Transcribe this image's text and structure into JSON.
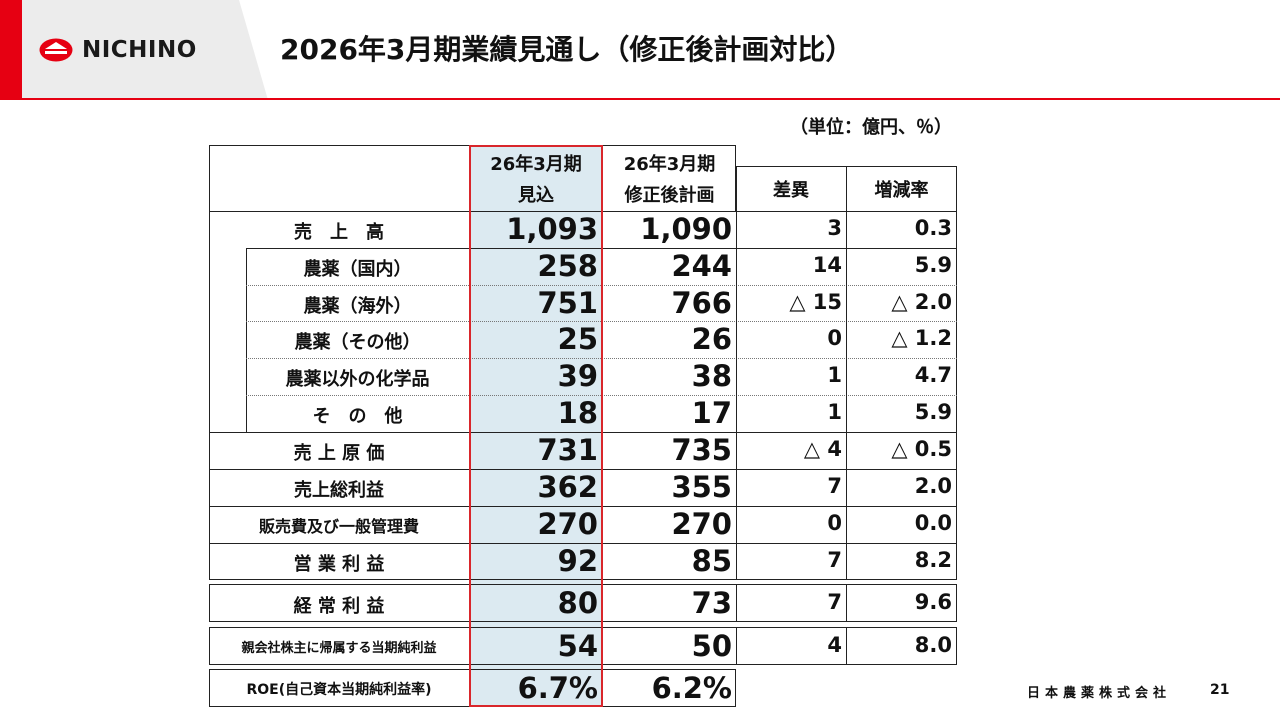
{
  "brand": {
    "logo_text": "NICHINO",
    "accent": "#e60012"
  },
  "title": "2026年3月期業績見通し（修正後計画対比）",
  "unit": "（単位：億円、％）",
  "columns": {
    "forecast_line1": "26年3月期",
    "forecast_line2": "見込",
    "plan_line1": "26年3月期",
    "plan_line2": "修正後計画",
    "diff": "差異",
    "rate": "増減率"
  },
  "rows": [
    {
      "label": "売　上　高",
      "forecast": "1,093",
      "plan": "1,090",
      "diff": "3",
      "rate": "0.3"
    },
    {
      "label": "農薬（国内）",
      "forecast": "258",
      "plan": "244",
      "diff": "14",
      "rate": "5.9"
    },
    {
      "label": "農薬（海外）",
      "forecast": "751",
      "plan": "766",
      "diff": "△ 15",
      "rate": "△ 2.0"
    },
    {
      "label": "農薬（その他）",
      "forecast": "25",
      "plan": "26",
      "diff": "0",
      "rate": "△ 1.2"
    },
    {
      "label": "農薬以外の化学品",
      "forecast": "39",
      "plan": "38",
      "diff": "1",
      "rate": "4.7"
    },
    {
      "label": "そ　の　他",
      "forecast": "18",
      "plan": "17",
      "diff": "1",
      "rate": "5.9"
    },
    {
      "label": "売 上 原 価",
      "forecast": "731",
      "plan": "735",
      "diff": "△ 4",
      "rate": "△ 0.5"
    },
    {
      "label": "売上総利益",
      "forecast": "362",
      "plan": "355",
      "diff": "7",
      "rate": "2.0"
    },
    {
      "label": "販売費及び一般管理費",
      "forecast": "270",
      "plan": "270",
      "diff": "0",
      "rate": "0.0"
    },
    {
      "label": "営 業 利 益",
      "forecast": "92",
      "plan": "85",
      "diff": "7",
      "rate": "8.2"
    },
    {
      "label": "経 常 利 益",
      "forecast": "80",
      "plan": "73",
      "diff": "7",
      "rate": "9.6"
    },
    {
      "label": "親会社株主に帰属する当期純利益",
      "forecast": "54",
      "plan": "50",
      "diff": "4",
      "rate": "8.0"
    },
    {
      "label": "ROE(自己資本当期純利益率)",
      "forecast": "6.7%",
      "plan": "6.2%"
    }
  ],
  "footer": {
    "company": "日本農薬株式会社",
    "page": "21"
  }
}
